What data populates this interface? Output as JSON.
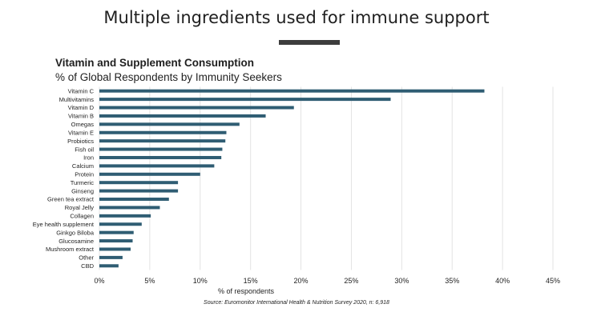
{
  "slide": {
    "title": "Multiple ingredients used for immune support",
    "source": "Source: Euromonitor International Health & Nutrition Survey 2020, n: 6,918"
  },
  "colors": {
    "bar": "#2f5d73",
    "grid": "#e3e3e3",
    "rule": "#3d3d3d"
  },
  "chart_data": {
    "type": "bar",
    "orientation": "horizontal",
    "title": "Vitamin and Supplement Consumption",
    "subtitle": "% of Global Respondents by Immunity Seekers",
    "xlabel": "% of respondents",
    "ylabel": "",
    "xlim": [
      0,
      45
    ],
    "xticks": [
      "0%",
      "5%",
      "10%",
      "15%",
      "20%",
      "25%",
      "30%",
      "35%",
      "40%",
      "45%"
    ],
    "grid": "vertical",
    "categories": [
      "Vitamin C",
      "Multivitamins",
      "Vitamin D",
      "Vitamin B",
      "Omegas",
      "Vitamin E",
      "Probiotics",
      "Fish oil",
      "Iron",
      "Calcium",
      "Protein",
      "Turmeric",
      "Ginseng",
      "Green tea extract",
      "Royal Jelly",
      "Collagen",
      "Eye health supplement",
      "Ginkgo Biloba",
      "Glucosamine",
      "Mushroom extract",
      "Other",
      "CBD"
    ],
    "values": [
      38.2,
      28.9,
      19.3,
      16.5,
      13.9,
      12.6,
      12.5,
      12.2,
      12.1,
      11.4,
      10.0,
      7.8,
      7.8,
      6.9,
      6.0,
      5.1,
      4.2,
      3.4,
      3.3,
      3.1,
      2.3,
      1.9
    ]
  }
}
